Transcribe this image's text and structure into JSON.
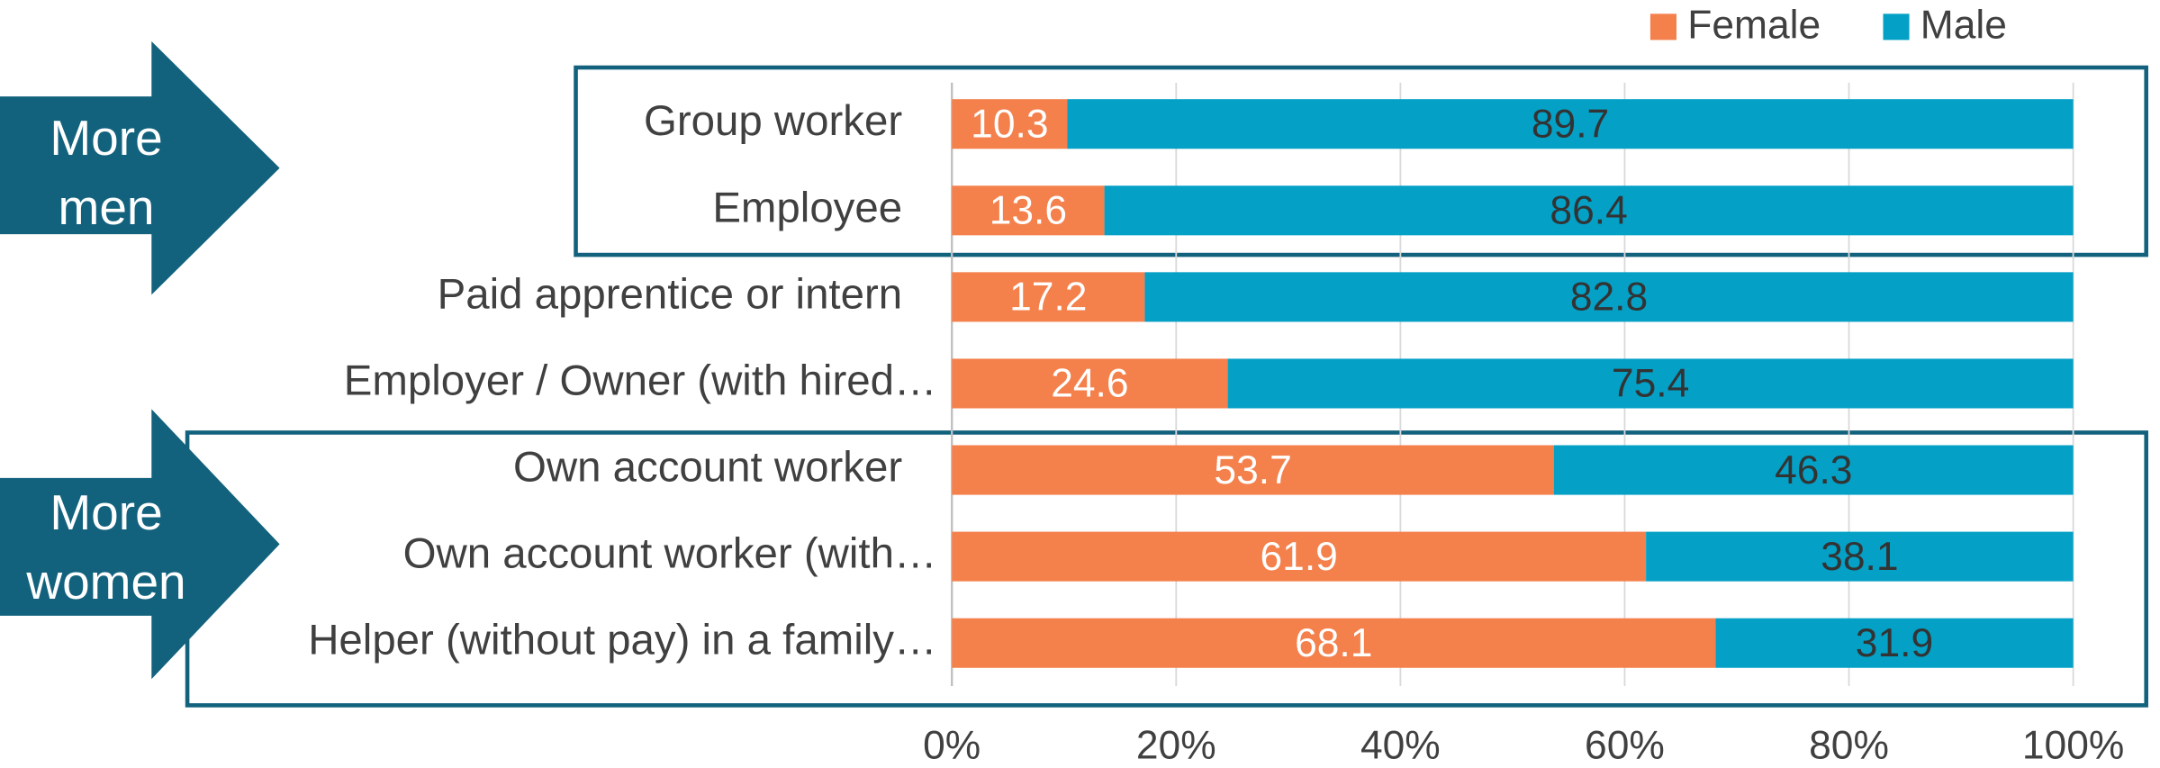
{
  "chart_data": {
    "type": "stacked-barh",
    "categories": [
      "Group worker",
      "Employee",
      "Paid apprentice or intern",
      "Employer / Owner (with hired…",
      "Own account worker",
      "Own account worker (with…",
      "Helper (without pay) in a family…"
    ],
    "series": [
      {
        "name": "Female",
        "color": "#f4804c",
        "values": [
          10.3,
          13.6,
          17.2,
          24.6,
          53.7,
          61.9,
          68.1
        ]
      },
      {
        "name": "Male",
        "color": "#04a0c6",
        "values": [
          89.7,
          86.4,
          82.8,
          75.4,
          46.3,
          38.1,
          31.9
        ]
      }
    ],
    "xlim": [
      0,
      100
    ],
    "xticks": [
      {
        "value": 0,
        "label": "0%"
      },
      {
        "value": 20,
        "label": "20%"
      },
      {
        "value": 40,
        "label": "40%"
      },
      {
        "value": 60,
        "label": "60%"
      },
      {
        "value": 80,
        "label": "80%"
      },
      {
        "value": 100,
        "label": "100%"
      }
    ],
    "grid": true,
    "legend": "top-right",
    "annotations": [
      {
        "text": "More men"
      },
      {
        "text": "More women"
      }
    ]
  }
}
